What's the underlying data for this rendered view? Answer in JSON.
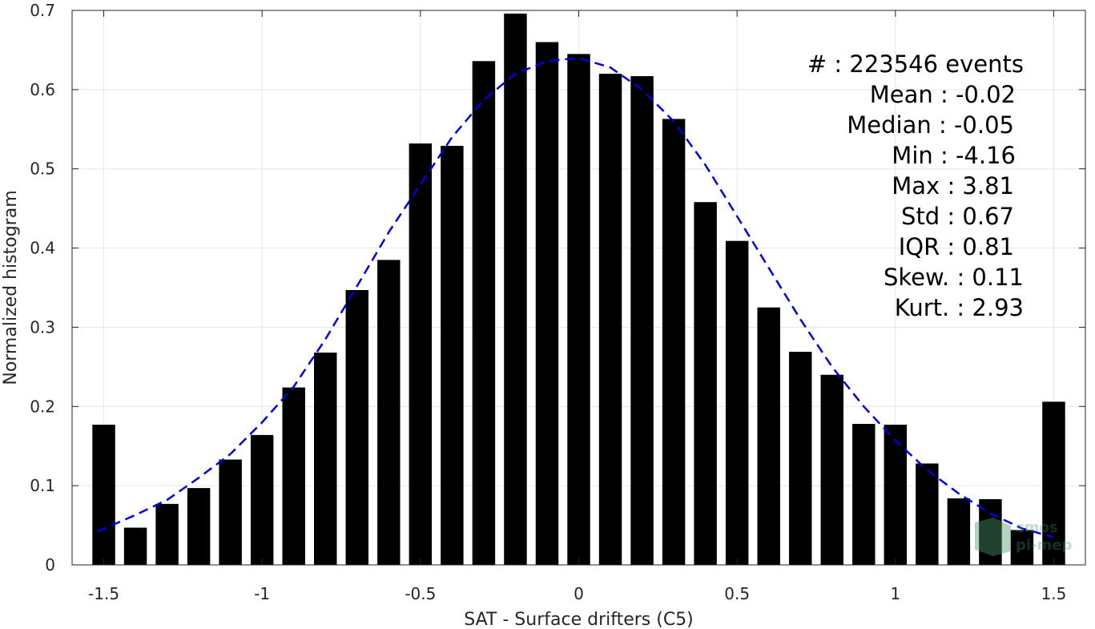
{
  "chart_data": {
    "type": "bar",
    "xlabel": "SAT - Surface drifters (C5)",
    "ylabel": "Normalized histogram",
    "xlim": [
      -1.6,
      1.6
    ],
    "ylim": [
      0,
      0.7
    ],
    "xticks": [
      -1.5,
      -1,
      -0.5,
      0,
      0.5,
      1,
      1.5
    ],
    "xtick_labels": [
      "-1.5",
      "-1",
      "-0.5",
      "0",
      "0.5",
      "1",
      "1.5"
    ],
    "yticks": [
      0,
      0.1,
      0.2,
      0.3,
      0.4,
      0.5,
      0.6,
      0.7
    ],
    "ytick_labels": [
      "0",
      "0.1",
      "0.2",
      "0.3",
      "0.4",
      "0.5",
      "0.6",
      "0.7"
    ],
    "grid": true,
    "bar_color": "#000000",
    "bars": {
      "x": [
        -1.5,
        -1.4,
        -1.3,
        -1.2,
        -1.1,
        -1.0,
        -0.9,
        -0.8,
        -0.7,
        -0.6,
        -0.5,
        -0.4,
        -0.3,
        -0.2,
        -0.1,
        0.0,
        0.1,
        0.2,
        0.3,
        0.4,
        0.5,
        0.6,
        0.7,
        0.8,
        0.9,
        1.0,
        1.1,
        1.2,
        1.3,
        1.4,
        1.5
      ],
      "values": [
        0.177,
        0.047,
        0.077,
        0.097,
        0.133,
        0.164,
        0.224,
        0.268,
        0.347,
        0.385,
        0.532,
        0.529,
        0.636,
        0.696,
        0.66,
        0.645,
        0.62,
        0.617,
        0.563,
        0.458,
        0.409,
        0.325,
        0.269,
        0.24,
        0.178,
        0.177,
        0.128,
        0.084,
        0.083,
        0.044,
        0.206
      ]
    },
    "fit_curve": {
      "style": "dashed",
      "color": "#0000e0",
      "x": [
        -1.52,
        -1.4,
        -1.3,
        -1.2,
        -1.1,
        -1.0,
        -0.9,
        -0.8,
        -0.7,
        -0.6,
        -0.5,
        -0.4,
        -0.3,
        -0.2,
        -0.1,
        0.0,
        0.1,
        0.2,
        0.3,
        0.4,
        0.5,
        0.6,
        0.7,
        0.8,
        0.9,
        1.0,
        1.1,
        1.2,
        1.3,
        1.4,
        1.5
      ],
      "y": [
        0.042,
        0.063,
        0.082,
        0.11,
        0.14,
        0.18,
        0.225,
        0.285,
        0.352,
        0.42,
        0.48,
        0.54,
        0.587,
        0.62,
        0.636,
        0.64,
        0.628,
        0.6,
        0.56,
        0.505,
        0.44,
        0.375,
        0.31,
        0.25,
        0.2,
        0.157,
        0.12,
        0.09,
        0.065,
        0.046,
        0.035
      ]
    },
    "stats": [
      {
        "label": "#  : 223546 events"
      },
      {
        "label": "Mean : -0.02"
      },
      {
        "label": "Median : -0.05"
      },
      {
        "label": "Min : -4.16"
      },
      {
        "label": "Max : 3.81"
      },
      {
        "label": "Std : 0.67"
      },
      {
        "label": "IQR : 0.81"
      },
      {
        "label": "Skew. : 0.11"
      },
      {
        "label": "Kurt. : 2.93"
      }
    ]
  },
  "watermark": {
    "line1": "smos",
    "line2": "pi-mep"
  }
}
